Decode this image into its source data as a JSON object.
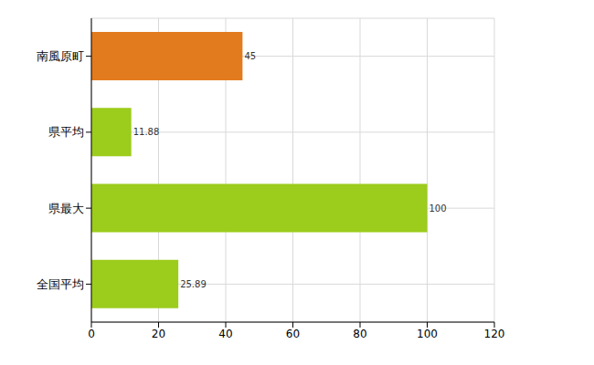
{
  "chart_data": {
    "type": "bar",
    "orientation": "horizontal",
    "categories": [
      "南風原町",
      "県平均",
      "県最大",
      "全国平均"
    ],
    "values": [
      45,
      11.88,
      100,
      25.89
    ],
    "colors": [
      "#e27b1e",
      "#9ccc1c",
      "#9ccc1c",
      "#9ccc1c"
    ],
    "xlim": [
      0,
      120
    ],
    "xticks": [
      0,
      20,
      40,
      60,
      80,
      100,
      120
    ],
    "grid": true,
    "data_labels": true
  }
}
